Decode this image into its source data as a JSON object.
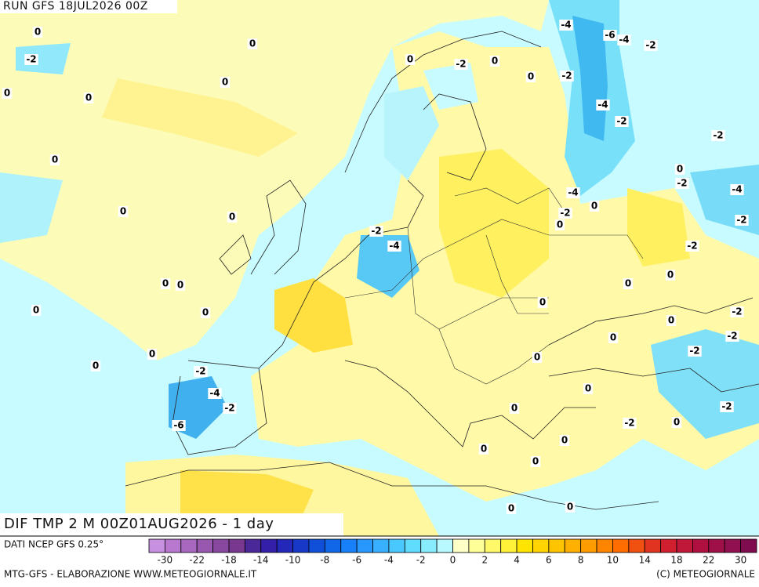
{
  "header": {
    "run": "RUN GFS 18JUL2026 00Z"
  },
  "map_title": "DIF TMP 2 M 00Z01AUG2026 - 1 day",
  "contour_labels": [
    "0",
    "-2",
    "0",
    "0",
    "0",
    "0",
    "0",
    "0",
    "0",
    "0",
    "0",
    "0",
    "0",
    "0",
    "0",
    "-2",
    "-4",
    "-2",
    "-6",
    "-2",
    "-4",
    "0",
    "-2",
    "0",
    "0",
    "-4",
    "-6",
    "-4",
    "-2",
    "-2",
    "-4",
    "-2",
    "-2",
    "0",
    "-2",
    "-4",
    "-4",
    "0",
    "-2",
    "0",
    "-2",
    "-2",
    "0",
    "0",
    "0",
    "-2",
    "0",
    "-2",
    "0",
    "-2",
    "0",
    "0",
    "0",
    "-2",
    "-2",
    "0",
    "0",
    "0",
    "0",
    "0",
    "0"
  ],
  "colorbar": {
    "colors": [
      "#c890e0",
      "#b878d0",
      "#a868c0",
      "#9858b0",
      "#8848a0",
      "#783890",
      "#4a2898",
      "#3420a8",
      "#2428b8",
      "#1838c8",
      "#1050d8",
      "#1068e8",
      "#1880f8",
      "#2898ff",
      "#38b0ff",
      "#48c8ff",
      "#60dcff",
      "#88ecff",
      "#b8f8ff",
      "#ffffc8",
      "#ffff98",
      "#fff868",
      "#fff038",
      "#ffe400",
      "#ffd400",
      "#ffc400",
      "#ffb000",
      "#ff9c00",
      "#ff8400",
      "#ff6c00",
      "#f05010",
      "#e03420",
      "#d02030",
      "#c01838",
      "#b01040",
      "#a01048",
      "#901050",
      "#800c50"
    ],
    "ticks": [
      -30,
      -22,
      -18,
      -14,
      -10,
      -8,
      -6,
      -4,
      -2,
      0,
      2,
      4,
      6,
      8,
      10,
      14,
      18,
      22,
      30
    ]
  },
  "footer": {
    "source": "DATI NCEP GFS 0.25°",
    "credit_left": "MTG-GFS - ELABORAZIONE WWW.METEOGIORNALE.IT",
    "credit_right": "(C) METEOGIORNALE"
  }
}
